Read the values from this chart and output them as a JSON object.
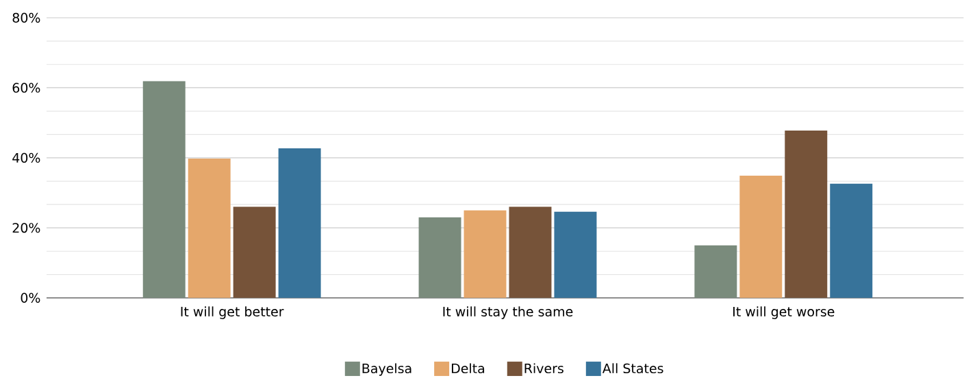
{
  "chart_data": {
    "type": "bar",
    "categories": [
      "It will get better",
      "It will stay the same",
      "It will get worse"
    ],
    "series": [
      {
        "name": "Bayelsa",
        "color": "#7a8b7c",
        "values": [
          61.9,
          23,
          15
        ]
      },
      {
        "name": "Delta",
        "color": "#e5a76b",
        "values": [
          39.8,
          25,
          34.9
        ]
      },
      {
        "name": "Rivers",
        "color": "#765339",
        "values": [
          26,
          26,
          47.8
        ]
      },
      {
        "name": "All States",
        "color": "#37739a",
        "values": [
          42.7,
          24.6,
          32.6
        ]
      }
    ],
    "ylim": [
      0,
      80
    ],
    "yticks": [
      {
        "value": 0,
        "label": "0%"
      },
      {
        "value": 6.67,
        "label": null
      },
      {
        "value": 13.33,
        "label": null
      },
      {
        "value": 20,
        "label": "20%"
      },
      {
        "value": 26.67,
        "label": null
      },
      {
        "value": 33.33,
        "label": null
      },
      {
        "value": 40,
        "label": "40%"
      },
      {
        "value": 46.67,
        "label": null
      },
      {
        "value": 53.33,
        "label": null
      },
      {
        "value": 60,
        "label": "60%"
      },
      {
        "value": 66.67,
        "label": null
      },
      {
        "value": 73.33,
        "label": null
      },
      {
        "value": 80,
        "label": "80%"
      }
    ],
    "grid": "y",
    "legend": "bottom"
  }
}
